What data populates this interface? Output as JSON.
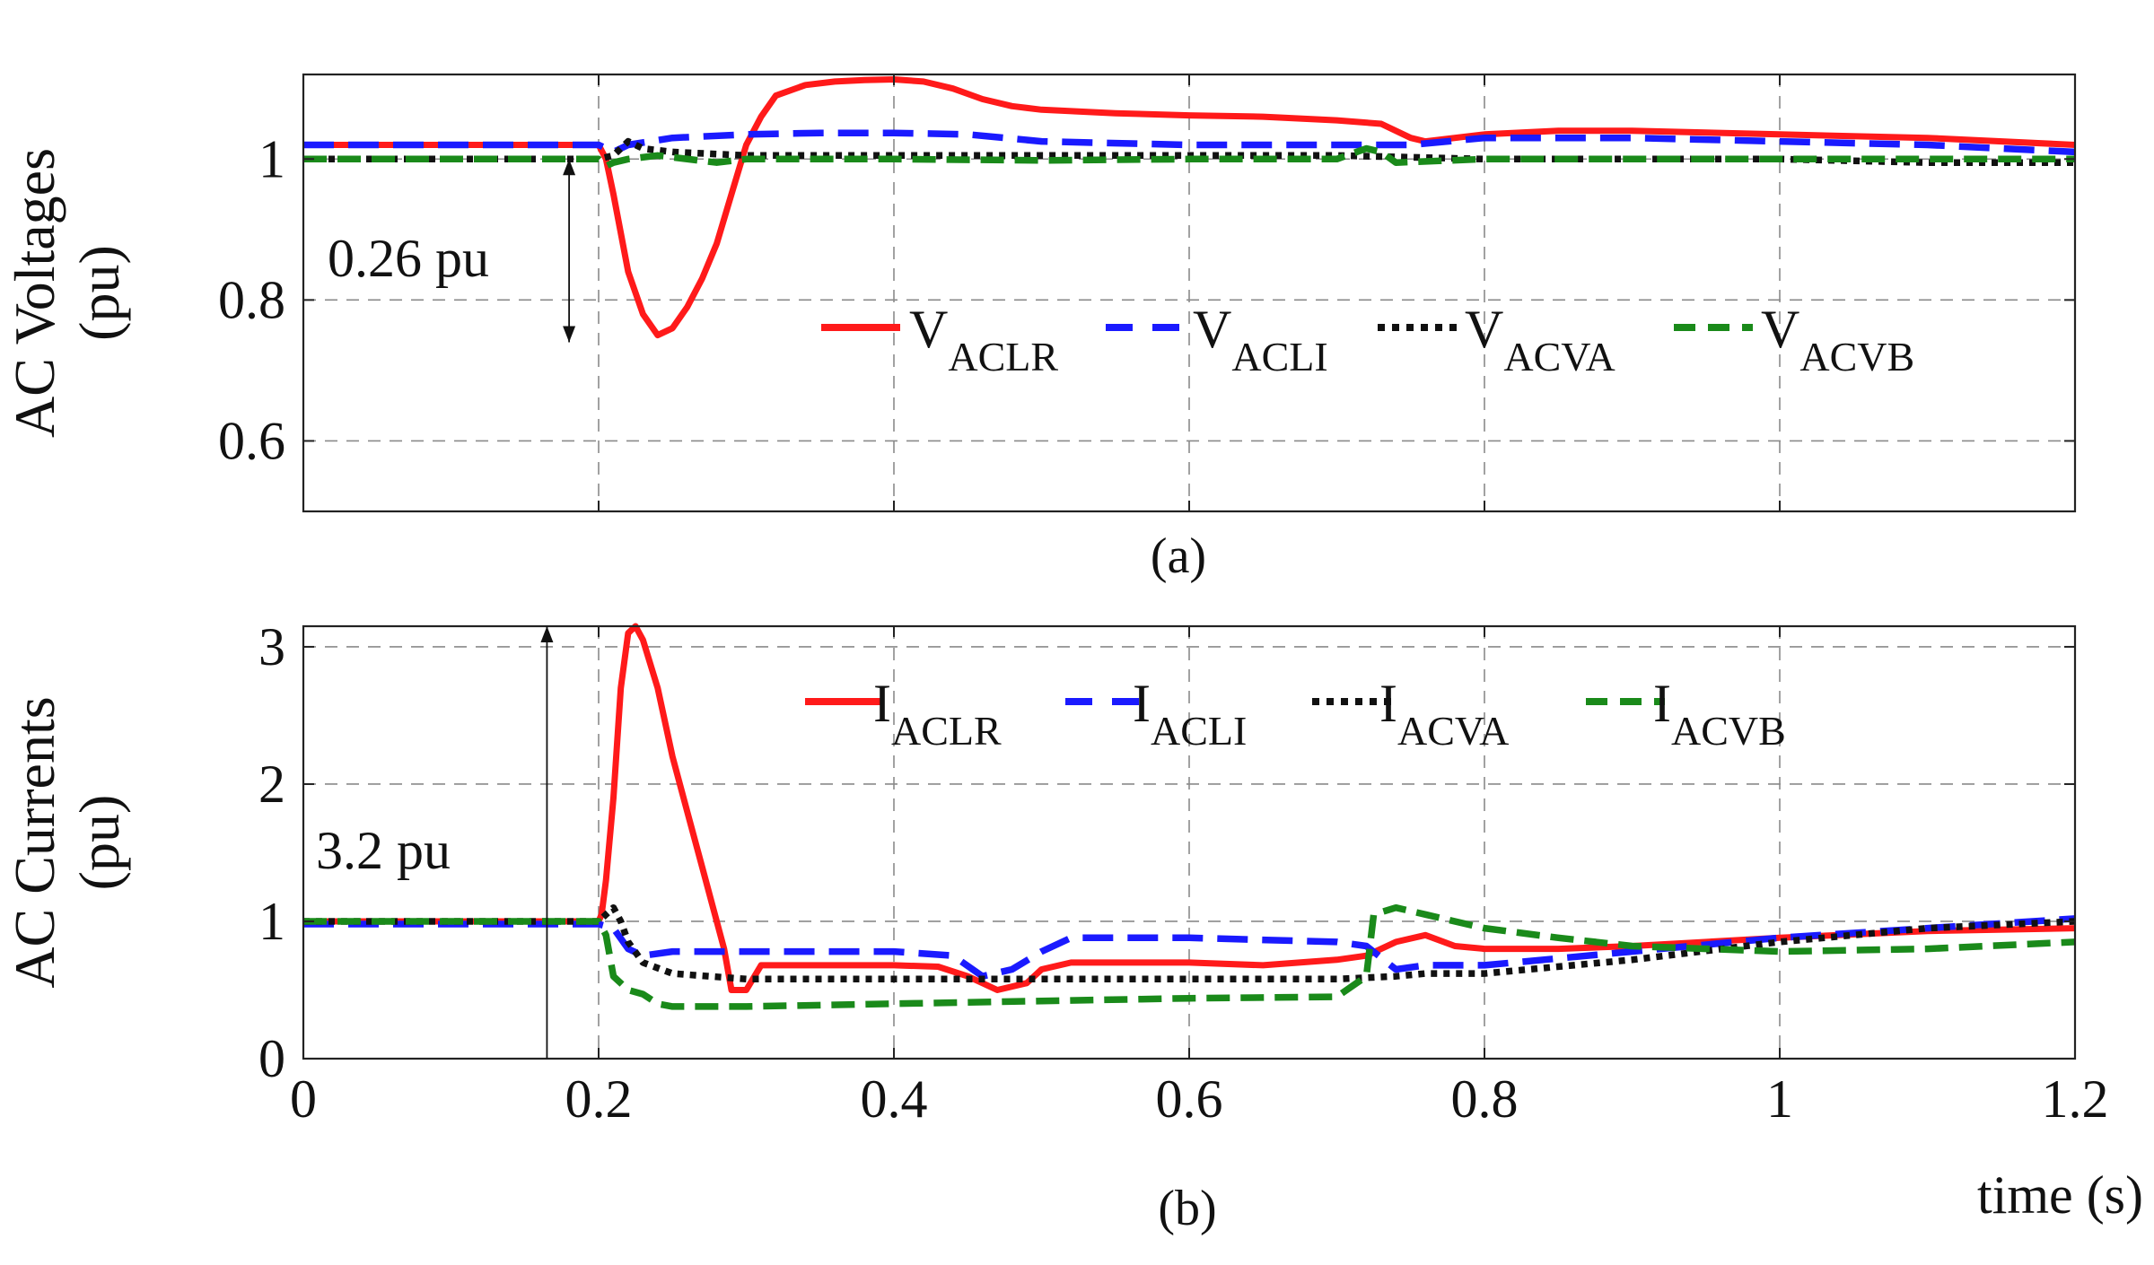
{
  "figure": {
    "subplot_a_caption": "(a)",
    "subplot_b_caption": "(b)",
    "xlabel": "time (s)"
  },
  "chart_data": [
    {
      "type": "line",
      "id": "a",
      "caption": "(a)",
      "ylabel_lines": [
        "AC Voltages",
        "(pu)"
      ],
      "xlim": [
        0,
        1.2
      ],
      "ylim": [
        0.5,
        1.12
      ],
      "xticks": [
        0,
        0.2,
        0.4,
        0.6,
        0.8,
        1,
        1.2
      ],
      "yticks": [
        0.6,
        0.8,
        1
      ],
      "ytick_labels": [
        "0.6",
        "0.8",
        "1"
      ],
      "grid": true,
      "legend_position": "center-right",
      "annotation": {
        "text": "0.26 pu",
        "x": 0.18,
        "y_from": 1.0,
        "y_to": 0.74
      },
      "series": [
        {
          "name": "V",
          "sub": "ACLR",
          "color": "#ff1a1a",
          "style": "solid",
          "x": [
            0,
            0.2,
            0.205,
            0.21,
            0.22,
            0.23,
            0.24,
            0.25,
            0.26,
            0.27,
            0.28,
            0.29,
            0.3,
            0.31,
            0.32,
            0.34,
            0.36,
            0.38,
            0.4,
            0.42,
            0.44,
            0.46,
            0.48,
            0.5,
            0.55,
            0.6,
            0.65,
            0.7,
            0.73,
            0.75,
            0.76,
            0.8,
            0.85,
            0.9,
            1.0,
            1.1,
            1.2
          ],
          "y": [
            1.02,
            1.02,
            1.0,
            0.95,
            0.84,
            0.78,
            0.75,
            0.76,
            0.79,
            0.83,
            0.88,
            0.95,
            1.02,
            1.06,
            1.09,
            1.105,
            1.11,
            1.112,
            1.113,
            1.11,
            1.1,
            1.085,
            1.075,
            1.07,
            1.065,
            1.062,
            1.06,
            1.055,
            1.05,
            1.03,
            1.025,
            1.035,
            1.04,
            1.04,
            1.035,
            1.03,
            1.02
          ]
        },
        {
          "name": "V",
          "sub": "ACLI",
          "color": "#1a1aff",
          "style": "dash",
          "x": [
            0,
            0.2,
            0.21,
            0.22,
            0.25,
            0.3,
            0.35,
            0.4,
            0.45,
            0.5,
            0.6,
            0.7,
            0.75,
            0.8,
            0.9,
            1.0,
            1.1,
            1.2
          ],
          "y": [
            1.02,
            1.02,
            1.01,
            1.02,
            1.03,
            1.035,
            1.037,
            1.037,
            1.035,
            1.025,
            1.02,
            1.02,
            1.02,
            1.03,
            1.03,
            1.025,
            1.02,
            1.01
          ]
        },
        {
          "name": "V",
          "sub": "ACVA",
          "color": "#111111",
          "style": "dot",
          "x": [
            0,
            0.2,
            0.21,
            0.22,
            0.23,
            0.25,
            0.3,
            0.4,
            0.5,
            0.6,
            0.7,
            0.8,
            0.9,
            1.0,
            1.1,
            1.2
          ],
          "y": [
            1.0,
            1.0,
            1.005,
            1.025,
            1.015,
            1.01,
            1.005,
            1.005,
            1.005,
            1.005,
            1.005,
            1.0,
            1.0,
            1.0,
            0.995,
            0.995
          ]
        },
        {
          "name": "V",
          "sub": "ACVB",
          "color": "#1a8a1a",
          "style": "longdash",
          "x": [
            0,
            0.2,
            0.205,
            0.21,
            0.22,
            0.24,
            0.28,
            0.3,
            0.4,
            0.5,
            0.6,
            0.7,
            0.72,
            0.73,
            0.74,
            0.8,
            0.9,
            1.0,
            1.1,
            1.2
          ],
          "y": [
            1.0,
            1.0,
            0.99,
            0.995,
            1.0,
            1.005,
            0.995,
            1.0,
            1.0,
            0.998,
            1.0,
            1.0,
            1.015,
            1.01,
            0.995,
            1.0,
            1.0,
            1.0,
            1.0,
            1.0
          ]
        }
      ]
    },
    {
      "type": "line",
      "id": "b",
      "caption": "(b)",
      "ylabel_lines": [
        "AC Currents",
        "(pu)"
      ],
      "xlabel": "time (s)",
      "xlim": [
        0,
        1.2
      ],
      "ylim": [
        0,
        3.15
      ],
      "xticks": [
        0,
        0.2,
        0.4,
        0.6,
        0.8,
        1,
        1.2
      ],
      "xtick_labels": [
        "0",
        "0.2",
        "0.4",
        "0.6",
        "0.8",
        "1",
        "1.2"
      ],
      "yticks": [
        0,
        1,
        2,
        3
      ],
      "ytick_labels": [
        "0",
        "1",
        "2",
        "3"
      ],
      "grid": true,
      "legend_position": "top-right",
      "annotation": {
        "text": "3.2 pu",
        "x": 0.165,
        "y_from": 0.0,
        "y_to": 3.15
      },
      "series": [
        {
          "name": "I",
          "sub": "ACLR",
          "color": "#ff1a1a",
          "style": "solid",
          "x": [
            0,
            0.2,
            0.202,
            0.205,
            0.21,
            0.215,
            0.22,
            0.225,
            0.23,
            0.24,
            0.25,
            0.26,
            0.27,
            0.28,
            0.285,
            0.29,
            0.3,
            0.31,
            0.35,
            0.4,
            0.43,
            0.45,
            0.47,
            0.49,
            0.5,
            0.52,
            0.6,
            0.65,
            0.7,
            0.72,
            0.74,
            0.76,
            0.78,
            0.8,
            0.85,
            0.9,
            1.0,
            1.1,
            1.2
          ],
          "y": [
            1.0,
            1.0,
            1.05,
            1.3,
            1.9,
            2.7,
            3.1,
            3.15,
            3.05,
            2.7,
            2.2,
            1.8,
            1.4,
            1.0,
            0.8,
            0.5,
            0.5,
            0.68,
            0.68,
            0.68,
            0.67,
            0.6,
            0.5,
            0.55,
            0.65,
            0.7,
            0.7,
            0.68,
            0.72,
            0.75,
            0.85,
            0.9,
            0.82,
            0.8,
            0.8,
            0.82,
            0.88,
            0.93,
            0.95
          ]
        },
        {
          "name": "I",
          "sub": "ACLI",
          "color": "#1a1aff",
          "style": "dash",
          "x": [
            0,
            0.2,
            0.21,
            0.22,
            0.23,
            0.25,
            0.3,
            0.4,
            0.44,
            0.46,
            0.48,
            0.5,
            0.52,
            0.6,
            0.7,
            0.72,
            0.74,
            0.76,
            0.8,
            0.9,
            1.0,
            1.1,
            1.2
          ],
          "y": [
            0.98,
            0.98,
            0.95,
            0.8,
            0.75,
            0.78,
            0.78,
            0.78,
            0.75,
            0.6,
            0.65,
            0.78,
            0.88,
            0.88,
            0.85,
            0.82,
            0.65,
            0.68,
            0.68,
            0.78,
            0.88,
            0.95,
            1.02
          ]
        },
        {
          "name": "I",
          "sub": "ACVA",
          "color": "#111111",
          "style": "dot",
          "x": [
            0,
            0.2,
            0.205,
            0.21,
            0.215,
            0.22,
            0.23,
            0.25,
            0.3,
            0.4,
            0.5,
            0.6,
            0.7,
            0.74,
            0.76,
            0.8,
            0.9,
            1.0,
            1.1,
            1.2
          ],
          "y": [
            1.0,
            1.0,
            1.05,
            1.1,
            1.0,
            0.85,
            0.7,
            0.62,
            0.58,
            0.58,
            0.58,
            0.58,
            0.58,
            0.6,
            0.62,
            0.62,
            0.72,
            0.85,
            0.95,
            1.0
          ]
        },
        {
          "name": "I",
          "sub": "ACVB",
          "color": "#1a8a1a",
          "style": "longdash",
          "x": [
            0,
            0.2,
            0.205,
            0.21,
            0.22,
            0.23,
            0.24,
            0.25,
            0.3,
            0.4,
            0.5,
            0.6,
            0.7,
            0.72,
            0.725,
            0.74,
            0.76,
            0.78,
            0.8,
            0.85,
            0.9,
            1.0,
            1.1,
            1.2
          ],
          "y": [
            1.0,
            1.0,
            0.9,
            0.6,
            0.5,
            0.47,
            0.4,
            0.38,
            0.38,
            0.4,
            0.42,
            0.44,
            0.45,
            0.6,
            1.05,
            1.1,
            1.05,
            1.0,
            0.95,
            0.88,
            0.82,
            0.78,
            0.8,
            0.85
          ]
        }
      ]
    }
  ]
}
